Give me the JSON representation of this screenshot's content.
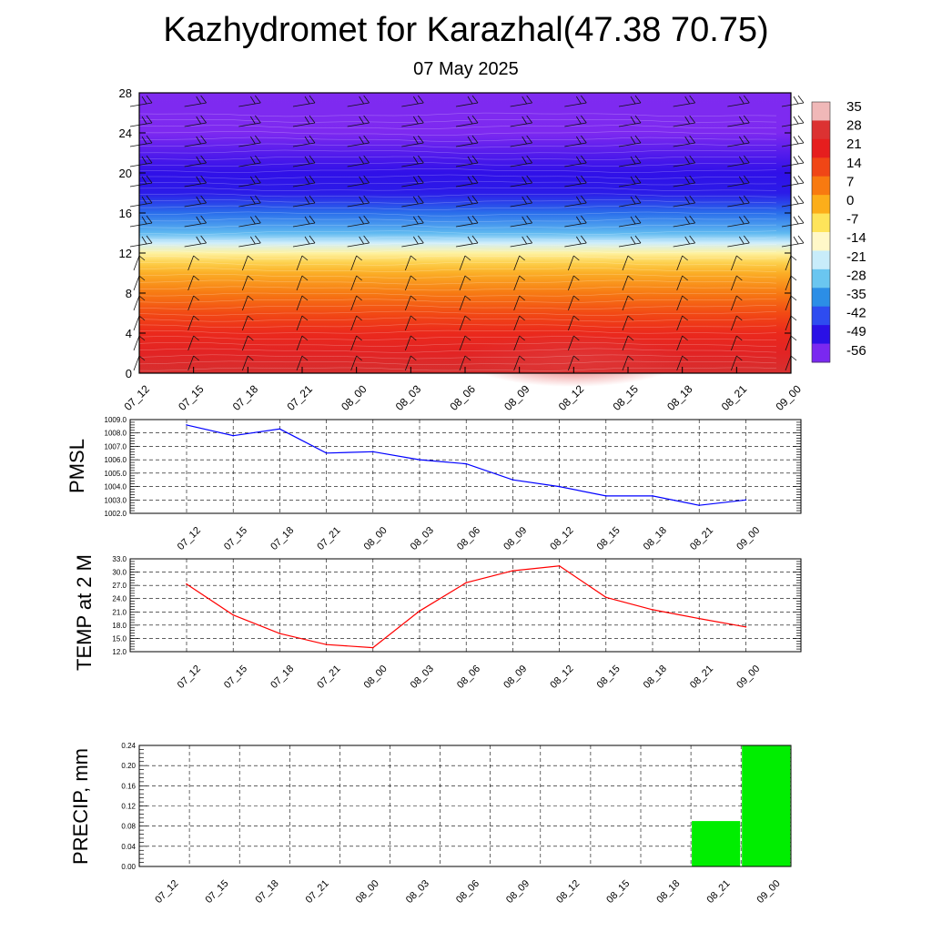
{
  "title": "Kazhydromet for Karazhal(47.38 70.75)",
  "subtitle": "07 May 2025",
  "chart_data": [
    {
      "type": "heatmap",
      "description_axis": "height",
      "y_ticks": [
        "0",
        "4",
        "8",
        "12",
        "16",
        "20",
        "24",
        "28"
      ],
      "ylim": [
        0,
        28
      ],
      "x_ticks": [
        "07_12",
        "07_15",
        "07_18",
        "07_21",
        "08_00",
        "08_03",
        "08_06",
        "08_09",
        "08_12",
        "08_15",
        "08_18",
        "08_21",
        "09_00"
      ],
      "colorbar_labels": [
        "35",
        "28",
        "21",
        "14",
        "7",
        "0",
        "-7",
        "-14",
        "-21",
        "-28",
        "-35",
        "-42",
        "-49",
        "-56"
      ],
      "colorbar_colors": [
        "#f0b8b8",
        "#dc3232",
        "#e61e1e",
        "#f04616",
        "#f87a10",
        "#fcae1a",
        "#fee45a",
        "#fff8c8",
        "#c8ecfa",
        "#6ac6f0",
        "#2c8ee6",
        "#2e4cf0",
        "#2a10e6",
        "#7a28f0"
      ],
      "temperature_profile": [
        {
          "level": 0,
          "value": 30
        },
        {
          "level": 2,
          "value": 26
        },
        {
          "level": 4,
          "value": 22
        },
        {
          "level": 6,
          "value": 16
        },
        {
          "level": 8,
          "value": 10
        },
        {
          "level": 10,
          "value": 4
        },
        {
          "level": 11,
          "value": 0
        },
        {
          "level": 12,
          "value": -6
        },
        {
          "level": 13,
          "value": -14
        },
        {
          "level": 14,
          "value": -22
        },
        {
          "level": 16,
          "value": -32
        },
        {
          "level": 18,
          "value": -45
        },
        {
          "level": 20,
          "value": -52
        },
        {
          "level": 22,
          "value": -55
        },
        {
          "level": 24,
          "value": -60
        },
        {
          "level": 28,
          "value": -62
        }
      ]
    },
    {
      "type": "line",
      "ylabel": "PMSL",
      "x": [
        "07_12",
        "07_15",
        "07_18",
        "07_21",
        "08_00",
        "08_03",
        "08_06",
        "08_09",
        "08_12",
        "08_15",
        "08_18",
        "08_21",
        "09_00"
      ],
      "values": [
        1008.6,
        1007.8,
        1008.3,
        1006.5,
        1006.6,
        1006.0,
        1005.7,
        1004.5,
        1004.0,
        1003.3,
        1003.3,
        1002.6,
        1003.0
      ],
      "ylim": [
        1002.0,
        1009.0
      ],
      "y_ticks": [
        "1002.0",
        "1003.0",
        "1004.0",
        "1005.0",
        "1006.0",
        "1007.0",
        "1008.0",
        "1009.0"
      ],
      "color": "#0000ff"
    },
    {
      "type": "line",
      "ylabel": "TEMP at 2 M",
      "x": [
        "07_12",
        "07_15",
        "07_18",
        "07_21",
        "08_00",
        "08_03",
        "08_06",
        "08_09",
        "08_12",
        "08_15",
        "08_18",
        "08_21",
        "09_00"
      ],
      "values": [
        27.3,
        20.3,
        16.1,
        13.6,
        12.9,
        21.2,
        27.6,
        30.3,
        31.4,
        24.3,
        21.5,
        19.5,
        17.6
      ],
      "ylim": [
        12.0,
        33.0
      ],
      "y_ticks": [
        "12.0",
        "15.0",
        "18.0",
        "21.0",
        "24.0",
        "27.0",
        "30.0",
        "33.0"
      ],
      "color": "#ff0000"
    },
    {
      "type": "bar",
      "ylabel": "PRECIP, mm",
      "categories": [
        "07_12",
        "07_15",
        "07_18",
        "07_21",
        "08_00",
        "08_03",
        "08_06",
        "08_09",
        "08_12",
        "08_15",
        "08_18",
        "08_21",
        "09_00"
      ],
      "values": [
        0,
        0,
        0,
        0,
        0,
        0,
        0,
        0,
        0,
        0,
        0,
        0.09,
        0.24
      ],
      "ylim": [
        0,
        0.24
      ],
      "y_ticks": [
        "0.00",
        "0.04",
        "0.08",
        "0.12",
        "0.16",
        "0.20",
        "0.24"
      ],
      "color": "#00ee00"
    }
  ]
}
